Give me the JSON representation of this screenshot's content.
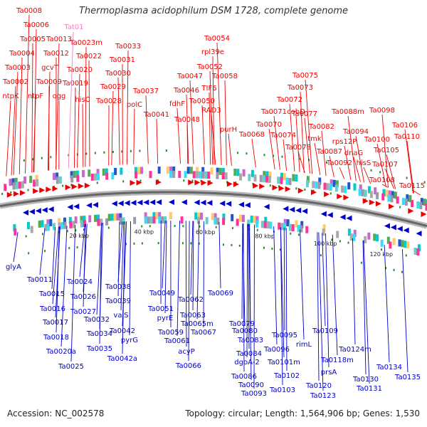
{
  "title": "Thermoplasma acidophilum DSM 1728, complete genome",
  "accession_label": "Accession: NC_002578",
  "summary_label": "Topology: circular; Length: 1,564,906 bp; Genes: 1,530",
  "colors": {
    "forward": "#ee0000",
    "reverse": "#0000cc",
    "rna": "#f080c0",
    "backbone": "#909090"
  },
  "ticks": [
    "20 kbp",
    "40 kbp",
    "60 kbp",
    "80 kbp",
    "100 kbp",
    "120 kbp"
  ],
  "forward_genes": [
    "Ta0008",
    "Ta0006",
    "Ta0005",
    "Ta0013",
    "Ta0004",
    "Ta0012",
    "Ta0003",
    "gcvT",
    "Ta0009",
    "Ta0002",
    "ntpF",
    "ogg",
    "ntpK",
    "Ta0023m",
    "Ta0022",
    "Ta0020",
    "Ta0019",
    "hisC",
    "Ta0033",
    "Ta0031",
    "Ta0030",
    "Ta0029",
    "Ta0028",
    "Ta0037",
    "polC",
    "Ta0041",
    "Ta0054",
    "rpl39e",
    "Ta0052",
    "Ta0047",
    "Ta0058",
    "Ta0046",
    "fdhF",
    "TIF6",
    "Ta0050",
    "RAD3",
    "Ta0048",
    "purH",
    "Ta0075",
    "Ta0073",
    "Ta0072",
    "Ta0071",
    "cobD",
    "Ta0077",
    "Ta0070",
    "Ta0074",
    "Ta0068",
    "Ta0078",
    "Ta0082",
    "tmk",
    "Ta0088m",
    "Ta0098",
    "Ta0106",
    "Ta0094",
    "Ta0110",
    "rps12P",
    "Ta0100",
    "Ta0087",
    "dnaG",
    "Ta0105",
    "Ta0092",
    "hisS",
    "Ta0107",
    "Ta0108",
    "Ta0115"
  ],
  "rna_genes": [
    "Tat01"
  ],
  "reverse_genes": [
    "glyA",
    "Ta0011",
    "Ta0024",
    "Ta0015",
    "Ta0026",
    "Ta0016",
    "Ta0027",
    "Ta0017",
    "Ta0032",
    "Ta0018",
    "Ta0034",
    "Ta0020a",
    "Ta0035",
    "Ta0025",
    "Ta0038",
    "Ta0039",
    "valS",
    "Ta0042",
    "pyrG",
    "Ta0042a",
    "Ta0049",
    "Ta0051",
    "pyrE",
    "Ta0062",
    "Ta0069",
    "Ta0063",
    "Ta0065m",
    "Ta0059",
    "Ta0067",
    "Ta0061",
    "acyP",
    "Ta0066",
    "Ta0079",
    "Ta0080",
    "Ta0083",
    "Ta0095",
    "Ta0096",
    "Ta0084",
    "dgoA-2",
    "Ta0101m",
    "Ta0086",
    "Ta0102",
    "Ta0090",
    "Ta0103",
    "Ta0093",
    "rimL",
    "Ta0109",
    "Ta0124m",
    "Ta0118m",
    "prsA",
    "Ta0120",
    "Ta0123",
    "Ta0134",
    "Ta0130",
    "Ta0131",
    "Ta0135"
  ]
}
